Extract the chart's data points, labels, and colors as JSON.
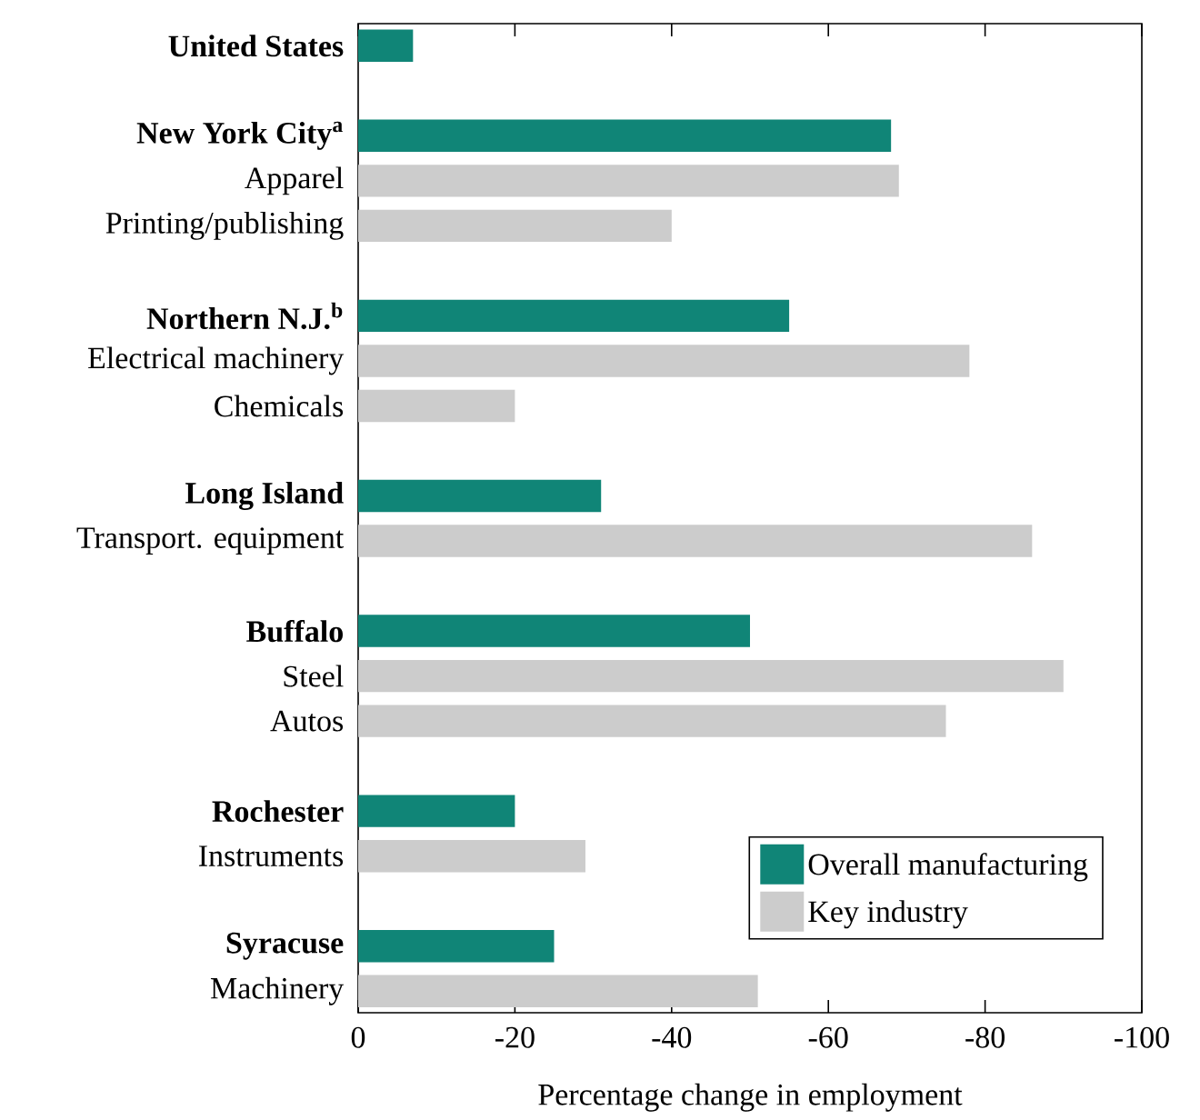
{
  "chart_data": {
    "type": "bar",
    "orientation": "horizontal",
    "xlabel": "Percentage change in employment",
    "categories": [
      "United States",
      null,
      "New York City$^{a}$",
      "Apparel",
      "Printing/publishing",
      null,
      "Northern N.J.$^{b}$",
      "Electrical machinery",
      "Chemicals",
      null,
      "Long Island",
      "Transport. equipment",
      null,
      "Buffalo",
      "Steel",
      "Autos",
      null,
      "Rochester",
      "Instruments",
      null,
      "Syracuse",
      "Machinery"
    ],
    "series": [
      {
        "name": "Overall manufacturing",
        "color": "#108577",
        "values": [
          -7,
          null,
          -68,
          null,
          null,
          null,
          -55,
          null,
          null,
          null,
          -31,
          null,
          null,
          -50,
          null,
          null,
          null,
          -20,
          null,
          null,
          -25,
          null
        ]
      },
      {
        "name": "Key industry",
        "color": "#cccccc",
        "values": [
          null,
          null,
          null,
          -69,
          -40,
          null,
          null,
          -78,
          -20,
          null,
          null,
          -86,
          null,
          null,
          -90,
          -75,
          null,
          null,
          -29,
          null,
          null,
          -51
        ]
      }
    ],
    "xlim": [
      0,
      -100
    ],
    "xticks": [
      0,
      -20,
      -40,
      -60,
      -80,
      -100
    ],
    "grid": false,
    "legend": "bottom right"
  }
}
